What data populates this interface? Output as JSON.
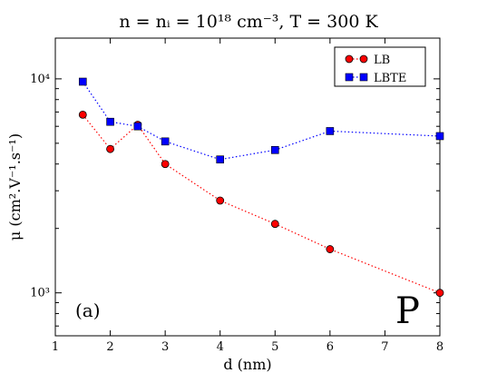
{
  "chart_data": {
    "type": "line",
    "title": "n = nᵢ = 10¹⁸ cm⁻³, T = 300 K",
    "xlabel": "d (nm)",
    "ylabel": "μ (cm².V⁻¹.s⁻¹)",
    "xlim": [
      1,
      8
    ],
    "ylim": [
      630,
      15500
    ],
    "yscale": "log",
    "x_ticks": [
      1,
      2,
      3,
      4,
      5,
      6,
      7,
      8
    ],
    "x_tick_labels": [
      "1",
      "2",
      "3",
      "4",
      "5",
      "6",
      "7",
      "8"
    ],
    "y_major_ticks": [
      1000,
      10000
    ],
    "y_tick_labels": [
      "10³",
      "10⁴"
    ],
    "grid": false,
    "legend_position": "top-right",
    "panel_label": "(a)",
    "annotation": "P",
    "series": [
      {
        "name": "LB",
        "color": "#ff0000",
        "marker": "circle",
        "line_style": "dotted",
        "x": [
          1.5,
          2.0,
          2.5,
          3.0,
          4.0,
          5.0,
          6.0,
          8.0
        ],
        "values": [
          6800,
          4700,
          6100,
          4000,
          2700,
          2100,
          1600,
          1000
        ]
      },
      {
        "name": "LBTE",
        "color": "#0000ff",
        "marker": "square",
        "line_style": "dotted",
        "x": [
          1.5,
          2.0,
          2.5,
          3.0,
          4.0,
          5.0,
          6.0,
          8.0
        ],
        "values": [
          9700,
          6300,
          6000,
          5100,
          4200,
          4650,
          5700,
          5400
        ]
      }
    ]
  }
}
